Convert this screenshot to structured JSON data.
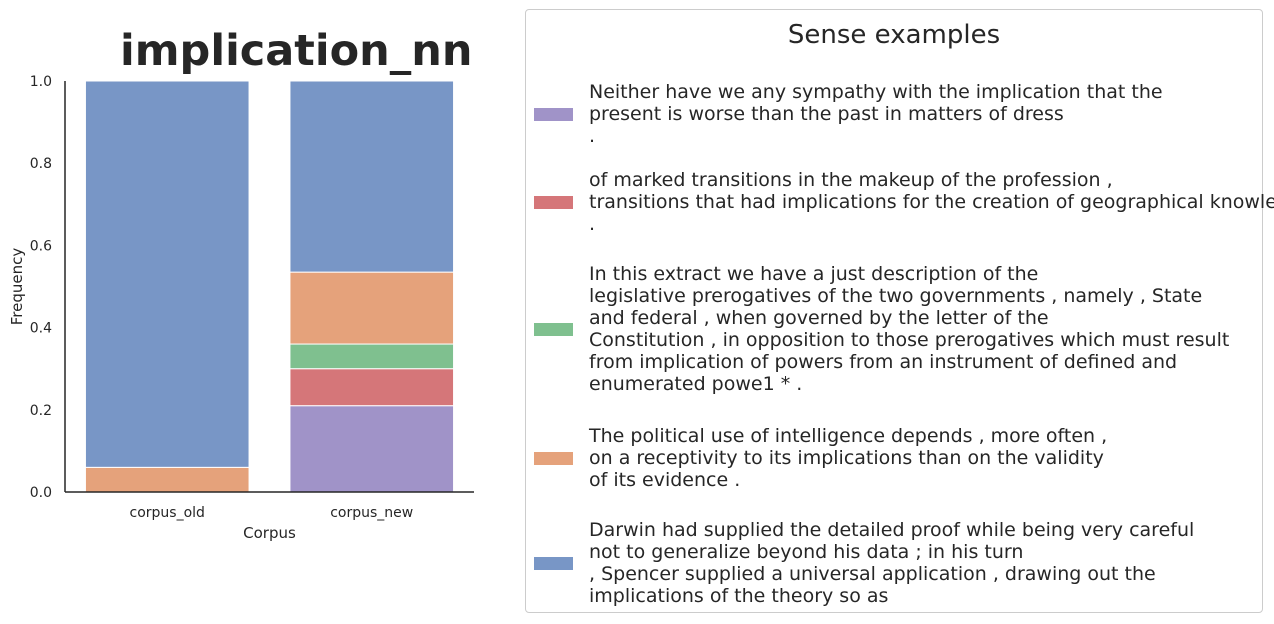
{
  "chart_data": {
    "type": "bar",
    "stacked": true,
    "title": "implication_nn",
    "xlabel": "Corpus",
    "ylabel": "Frequency",
    "ylim": [
      0,
      1.0
    ],
    "yticks": [
      "0.0",
      "0.2",
      "0.4",
      "0.6",
      "0.8",
      "1.0"
    ],
    "categories": [
      "corpus_old",
      "corpus_new"
    ],
    "series": [
      {
        "color": "#a093c8",
        "values": [
          0.0,
          0.21
        ]
      },
      {
        "color": "#d57679",
        "values": [
          0.0,
          0.09
        ]
      },
      {
        "color": "#7fc08f",
        "values": [
          0.0,
          0.06
        ]
      },
      {
        "color": "#e5a27b",
        "values": [
          0.06,
          0.175
        ]
      },
      {
        "color": "#7896c6",
        "values": [
          0.94,
          0.465
        ]
      }
    ],
    "grid": false
  },
  "legend": {
    "title": "Sense examples",
    "entries": [
      {
        "color": "#a093c8",
        "text": "Neither have we any sympathy with the implication that the\npresent is worse than the past in matters of dress\n."
      },
      {
        "color": "#d57679",
        "text": "of marked transitions in the makeup of the profession ,\ntransitions that had implications for the creation of geographical knowledge\n."
      },
      {
        "color": "#7fc08f",
        "text": "In this extract we have a just description of the\nlegislative prerogatives of the two governments , namely , State\nand federal , when governed by the letter of the\nConstitution , in opposition to those prerogatives which must result\nfrom implication of powers from an instrument of defined and\nenumerated powe1 * ."
      },
      {
        "color": "#e5a27b",
        "text": "The political use of intelligence depends , more often ,\non a receptivity to its implications than on the validity\nof its evidence ."
      },
      {
        "color": "#7896c6",
        "text": "Darwin had supplied the detailed proof while being very careful\nnot to generalize beyond his data ; in his turn\n, Spencer supplied a universal application , drawing out the\nimplications of the theory so as"
      }
    ]
  }
}
